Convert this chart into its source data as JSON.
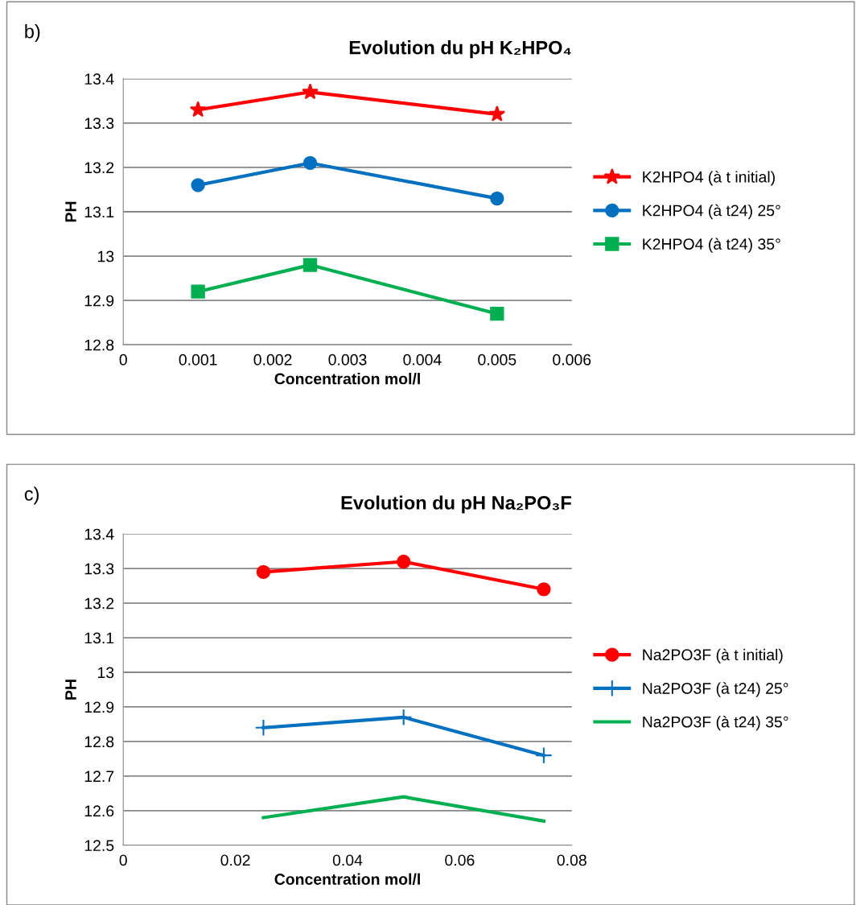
{
  "chart_data": [
    {
      "type": "line",
      "title": "Evolution du pH K₂HPO₄",
      "xlabel": "Concentration mol/l",
      "ylabel": "PH",
      "annotations": [
        "b)"
      ],
      "x": [
        0.001,
        0.0025,
        0.005
      ],
      "series": [
        {
          "name": "K2HPO4 (à t initial)",
          "color": "#ff0000",
          "values": [
            13.33,
            13.37,
            13.32
          ],
          "marker": "star"
        },
        {
          "name": "K2HPO4 (à t24) 25°",
          "color": "#0070c0",
          "values": [
            13.16,
            13.21,
            13.13
          ],
          "marker": "circle"
        },
        {
          "name": "K2HPO4 (à t24) 35°",
          "color": "#00b050",
          "values": [
            12.92,
            12.98,
            12.87
          ],
          "marker": "square"
        }
      ],
      "xlim": [
        0,
        0.006
      ],
      "xticks": [
        0,
        0.001,
        0.002,
        0.003,
        0.004,
        0.005,
        0.006
      ],
      "ylim": [
        12.8,
        13.4
      ],
      "yticks": [
        12.8,
        12.9,
        13,
        13.1,
        13.2,
        13.3,
        13.4
      ],
      "grid": "y",
      "legend": "right"
    },
    {
      "type": "line",
      "title": "Evolution du pH Na₂PO₃F",
      "xlabel": "Concentration mol/l",
      "ylabel": "PH",
      "annotations": [
        "c)"
      ],
      "x": [
        0.025,
        0.05,
        0.075
      ],
      "series": [
        {
          "name": "Na2PO3F (à t initial)",
          "color": "#ff0000",
          "values": [
            13.29,
            13.32,
            13.24
          ],
          "marker": "circle"
        },
        {
          "name": "Na2PO3F (à t24) 25°",
          "color": "#0070c0",
          "values": [
            12.84,
            12.87,
            12.76
          ],
          "marker": "cross"
        },
        {
          "name": "Na2PO3F (à t24) 35°",
          "color": "#00b050",
          "values": [
            12.58,
            12.64,
            12.57
          ],
          "marker": "none"
        }
      ],
      "xlim": [
        0,
        0.08
      ],
      "xticks": [
        0,
        0.02,
        0.04,
        0.06,
        0.08
      ],
      "ylim": [
        12.5,
        13.4
      ],
      "yticks": [
        12.5,
        12.6,
        12.7,
        12.8,
        12.9,
        13,
        13.1,
        13.2,
        13.3,
        13.4
      ],
      "grid": "y",
      "legend": "right"
    }
  ]
}
